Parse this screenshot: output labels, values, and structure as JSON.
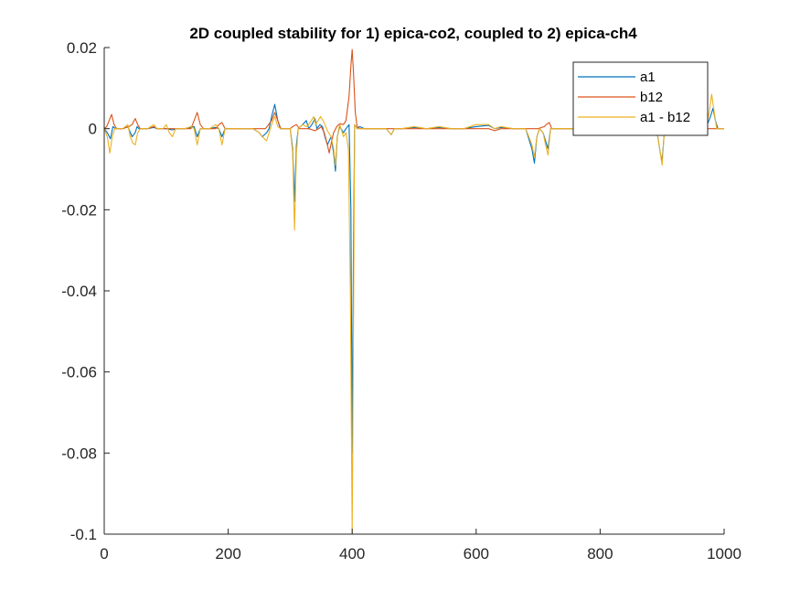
{
  "chart_data": {
    "type": "line",
    "title": "2D coupled stability for 1) epica-co2, coupled to 2) epica-ch4",
    "xlabel": "",
    "ylabel": "",
    "xlim": [
      0,
      1000
    ],
    "ylim": [
      -0.1,
      0.02
    ],
    "xticks": [
      0,
      200,
      400,
      600,
      800,
      1000
    ],
    "xtick_labels": [
      "0",
      "200",
      "400",
      "600",
      "800",
      "1000"
    ],
    "yticks": [
      0.02,
      0,
      -0.02,
      -0.04,
      -0.06,
      -0.08,
      -0.1
    ],
    "ytick_labels": [
      "0.02",
      "0",
      "-0.02",
      "-0.04",
      "-0.06",
      "-0.08",
      "-0.1"
    ],
    "grid": false,
    "legend_position": "top-right",
    "series": [
      {
        "name": "a1",
        "color": "#0072BD",
        "points": [
          [
            0,
            0
          ],
          [
            5,
            -0.001
          ],
          [
            10,
            -0.0025
          ],
          [
            14,
            0.0005
          ],
          [
            18,
            0
          ],
          [
            30,
            0
          ],
          [
            38,
            0.0005
          ],
          [
            45,
            -0.002
          ],
          [
            50,
            -0.001
          ],
          [
            53,
            0.0005
          ],
          [
            56,
            0
          ],
          [
            70,
            0
          ],
          [
            80,
            0.0003
          ],
          [
            85,
            0
          ],
          [
            100,
            0
          ],
          [
            110,
            -0.0003
          ],
          [
            118,
            0
          ],
          [
            130,
            0
          ],
          [
            140,
            0.0003
          ],
          [
            145,
            0.0005
          ],
          [
            150,
            -0.002
          ],
          [
            155,
            0
          ],
          [
            170,
            0
          ],
          [
            180,
            0.0003
          ],
          [
            185,
            0
          ],
          [
            190,
            -0.002
          ],
          [
            195,
            0
          ],
          [
            210,
            0
          ],
          [
            240,
            0
          ],
          [
            250,
            -0.001
          ],
          [
            255,
            -0.002
          ],
          [
            262,
            -0.001
          ],
          [
            266,
            0
          ],
          [
            270,
            0.003
          ],
          [
            275,
            0.006
          ],
          [
            280,
            0.002
          ],
          [
            284,
            0
          ],
          [
            290,
            0
          ],
          [
            300,
            0
          ],
          [
            304,
            -0.005
          ],
          [
            307,
            -0.018
          ],
          [
            310,
            -0.004
          ],
          [
            313,
            0
          ],
          [
            320,
            0.001
          ],
          [
            326,
            0.002
          ],
          [
            330,
            0
          ],
          [
            335,
            0.001
          ],
          [
            340,
            0.0025
          ],
          [
            343,
            0
          ],
          [
            348,
            0.001
          ],
          [
            352,
            0.0005
          ],
          [
            356,
            -0.002
          ],
          [
            360,
            -0.004
          ],
          [
            366,
            -0.002
          ],
          [
            370,
            -0.006
          ],
          [
            373,
            -0.0105
          ],
          [
            376,
            -0.002
          ],
          [
            380,
            0.0005
          ],
          [
            386,
            -0.001
          ],
          [
            390,
            0
          ],
          [
            395,
            0.001
          ],
          [
            398,
            -0.02
          ],
          [
            400,
            -0.08
          ],
          [
            402,
            -0.03
          ],
          [
            404,
            0.001
          ],
          [
            408,
            0
          ],
          [
            412,
            0.0005
          ],
          [
            420,
            0
          ],
          [
            440,
            0
          ],
          [
            455,
            0
          ],
          [
            463,
            -0.0015
          ],
          [
            468,
            0
          ],
          [
            480,
            0
          ],
          [
            500,
            0.0003
          ],
          [
            520,
            0
          ],
          [
            540,
            0.0003
          ],
          [
            560,
            0
          ],
          [
            580,
            0
          ],
          [
            600,
            0.0005
          ],
          [
            620,
            0.0008
          ],
          [
            630,
            0
          ],
          [
            640,
            0.0003
          ],
          [
            660,
            0
          ],
          [
            680,
            0
          ],
          [
            690,
            -0.005
          ],
          [
            694,
            -0.0085
          ],
          [
            698,
            -0.002
          ],
          [
            702,
            0
          ],
          [
            708,
            -0.001
          ],
          [
            712,
            -0.003
          ],
          [
            716,
            -0.005
          ],
          [
            720,
            0
          ],
          [
            730,
            0
          ],
          [
            740,
            0
          ],
          [
            760,
            0
          ],
          [
            780,
            0
          ],
          [
            800,
            0
          ],
          [
            820,
            0
          ],
          [
            840,
            0
          ],
          [
            860,
            0
          ],
          [
            880,
            0
          ],
          [
            890,
            0
          ],
          [
            893,
            -0.002
          ],
          [
            897,
            -0.006
          ],
          [
            900,
            -0.008
          ],
          [
            903,
            -0.002
          ],
          [
            906,
            0
          ],
          [
            920,
            0
          ],
          [
            950,
            0
          ],
          [
            970,
            0
          ],
          [
            978,
            0.003
          ],
          [
            982,
            0.005
          ],
          [
            986,
            0.002
          ],
          [
            990,
            0
          ],
          [
            1000,
            0
          ]
        ]
      },
      {
        "name": "b12",
        "color": "#D95319",
        "points": [
          [
            0,
            0
          ],
          [
            4,
            0.0005
          ],
          [
            8,
            0.002
          ],
          [
            12,
            0.0035
          ],
          [
            16,
            0.001
          ],
          [
            20,
            0
          ],
          [
            30,
            0
          ],
          [
            40,
            0.0005
          ],
          [
            45,
            0.001
          ],
          [
            50,
            0.0025
          ],
          [
            54,
            0.001
          ],
          [
            58,
            0
          ],
          [
            70,
            0
          ],
          [
            80,
            0.0005
          ],
          [
            85,
            0
          ],
          [
            100,
            0
          ],
          [
            120,
            0
          ],
          [
            140,
            0
          ],
          [
            145,
            0.002
          ],
          [
            150,
            0.004
          ],
          [
            155,
            0.001
          ],
          [
            160,
            0
          ],
          [
            180,
            0
          ],
          [
            185,
            0.001
          ],
          [
            190,
            0.0015
          ],
          [
            195,
            0
          ],
          [
            210,
            0
          ],
          [
            240,
            0
          ],
          [
            250,
            0
          ],
          [
            260,
            0
          ],
          [
            270,
            0.002
          ],
          [
            275,
            0.004
          ],
          [
            280,
            0.002
          ],
          [
            285,
            0
          ],
          [
            300,
            0
          ],
          [
            304,
            0.0005
          ],
          [
            310,
            0.001
          ],
          [
            315,
            0
          ],
          [
            330,
            0
          ],
          [
            340,
            -0.0005
          ],
          [
            346,
            0
          ],
          [
            350,
            0.0005
          ],
          [
            355,
            -0.001
          ],
          [
            360,
            -0.004
          ],
          [
            363,
            -0.006
          ],
          [
            367,
            -0.003
          ],
          [
            370,
            -0.001
          ],
          [
            375,
            0.0005
          ],
          [
            380,
            0.0012
          ],
          [
            386,
            0.001
          ],
          [
            390,
            0.002
          ],
          [
            395,
            0.008
          ],
          [
            398,
            0.0155
          ],
          [
            400,
            0.0195
          ],
          [
            402,
            0.014
          ],
          [
            405,
            0.004
          ],
          [
            408,
            0.0005
          ],
          [
            412,
            0
          ],
          [
            440,
            0
          ],
          [
            470,
            0
          ],
          [
            500,
            0
          ],
          [
            520,
            0
          ],
          [
            540,
            0
          ],
          [
            560,
            0
          ],
          [
            600,
            0
          ],
          [
            620,
            0
          ],
          [
            630,
            -0.0005
          ],
          [
            640,
            0
          ],
          [
            660,
            0
          ],
          [
            680,
            0
          ],
          [
            700,
            0
          ],
          [
            710,
            0.0005
          ],
          [
            713,
            0.001
          ],
          [
            718,
            0.0015
          ],
          [
            722,
            0
          ],
          [
            740,
            0
          ],
          [
            760,
            0
          ],
          [
            780,
            0
          ],
          [
            800,
            0
          ],
          [
            840,
            0
          ],
          [
            880,
            0
          ],
          [
            895,
            0
          ],
          [
            898,
            -0.001
          ],
          [
            902,
            0
          ],
          [
            920,
            0
          ],
          [
            950,
            0
          ],
          [
            980,
            0
          ],
          [
            1000,
            0
          ]
        ]
      },
      {
        "name": "a1 - b12",
        "color": "#EDB120",
        "points": [
          [
            0,
            0
          ],
          [
            5,
            -0.002
          ],
          [
            9,
            -0.006
          ],
          [
            13,
            -0.002
          ],
          [
            17,
            0
          ],
          [
            30,
            0
          ],
          [
            38,
            0.001
          ],
          [
            42,
            -0.002
          ],
          [
            46,
            -0.0035
          ],
          [
            50,
            -0.004
          ],
          [
            54,
            -0.001
          ],
          [
            58,
            0
          ],
          [
            70,
            0
          ],
          [
            80,
            0.001
          ],
          [
            85,
            0
          ],
          [
            95,
            0
          ],
          [
            100,
            0.001
          ],
          [
            105,
            -0.001
          ],
          [
            110,
            -0.002
          ],
          [
            115,
            0
          ],
          [
            130,
            0
          ],
          [
            140,
            0.0005
          ],
          [
            145,
            0
          ],
          [
            150,
            -0.004
          ],
          [
            155,
            0
          ],
          [
            170,
            0
          ],
          [
            180,
            0.001
          ],
          [
            185,
            0
          ],
          [
            190,
            -0.004
          ],
          [
            195,
            0
          ],
          [
            210,
            0
          ],
          [
            230,
            0
          ],
          [
            240,
            0
          ],
          [
            250,
            -0.001
          ],
          [
            255,
            -0.002
          ],
          [
            262,
            -0.003
          ],
          [
            266,
            -0.001
          ],
          [
            270,
            0.001
          ],
          [
            275,
            0.003
          ],
          [
            280,
            0.0005
          ],
          [
            285,
            0
          ],
          [
            300,
            0
          ],
          [
            304,
            -0.006
          ],
          [
            307,
            -0.025
          ],
          [
            310,
            -0.006
          ],
          [
            313,
            0
          ],
          [
            320,
            0.001
          ],
          [
            326,
            0.0005
          ],
          [
            330,
            0.001
          ],
          [
            334,
            0.002
          ],
          [
            338,
            0.003
          ],
          [
            341,
            0.001
          ],
          [
            345,
            0.002
          ],
          [
            349,
            0.003
          ],
          [
            353,
            0.002
          ],
          [
            356,
            0.001
          ],
          [
            360,
            -0.0005
          ],
          [
            366,
            -0.002
          ],
          [
            370,
            -0.005
          ],
          [
            373,
            -0.009
          ],
          [
            376,
            -0.002
          ],
          [
            380,
            0.001
          ],
          [
            386,
            -0.002
          ],
          [
            390,
            -0.001
          ],
          [
            394,
            -0.005
          ],
          [
            397,
            -0.04
          ],
          [
            400,
            -0.1
          ],
          [
            402,
            -0.05
          ],
          [
            404,
            0.001
          ],
          [
            408,
            0
          ],
          [
            415,
            0
          ],
          [
            440,
            0
          ],
          [
            455,
            0
          ],
          [
            463,
            -0.0015
          ],
          [
            468,
            0
          ],
          [
            480,
            0
          ],
          [
            500,
            0.0005
          ],
          [
            520,
            0
          ],
          [
            540,
            0.0005
          ],
          [
            560,
            0
          ],
          [
            580,
            0
          ],
          [
            600,
            0.001
          ],
          [
            620,
            0.001
          ],
          [
            630,
            0
          ],
          [
            640,
            0.0005
          ],
          [
            660,
            0
          ],
          [
            680,
            0
          ],
          [
            690,
            -0.004
          ],
          [
            694,
            -0.007
          ],
          [
            698,
            -0.002
          ],
          [
            702,
            0
          ],
          [
            708,
            -0.001
          ],
          [
            712,
            -0.004
          ],
          [
            716,
            -0.0065
          ],
          [
            720,
            0
          ],
          [
            730,
            0
          ],
          [
            740,
            0
          ],
          [
            760,
            0
          ],
          [
            780,
            0
          ],
          [
            800,
            0
          ],
          [
            820,
            0
          ],
          [
            840,
            0
          ],
          [
            860,
            0
          ],
          [
            880,
            0
          ],
          [
            890,
            0
          ],
          [
            893,
            -0.002
          ],
          [
            897,
            -0.006
          ],
          [
            900,
            -0.009
          ],
          [
            903,
            -0.002
          ],
          [
            906,
            0
          ],
          [
            920,
            0
          ],
          [
            950,
            0
          ],
          [
            970,
            0
          ],
          [
            976,
            0.004
          ],
          [
            980,
            0.0085
          ],
          [
            984,
            0.004
          ],
          [
            988,
            0
          ],
          [
            1000,
            0
          ]
        ]
      }
    ]
  }
}
